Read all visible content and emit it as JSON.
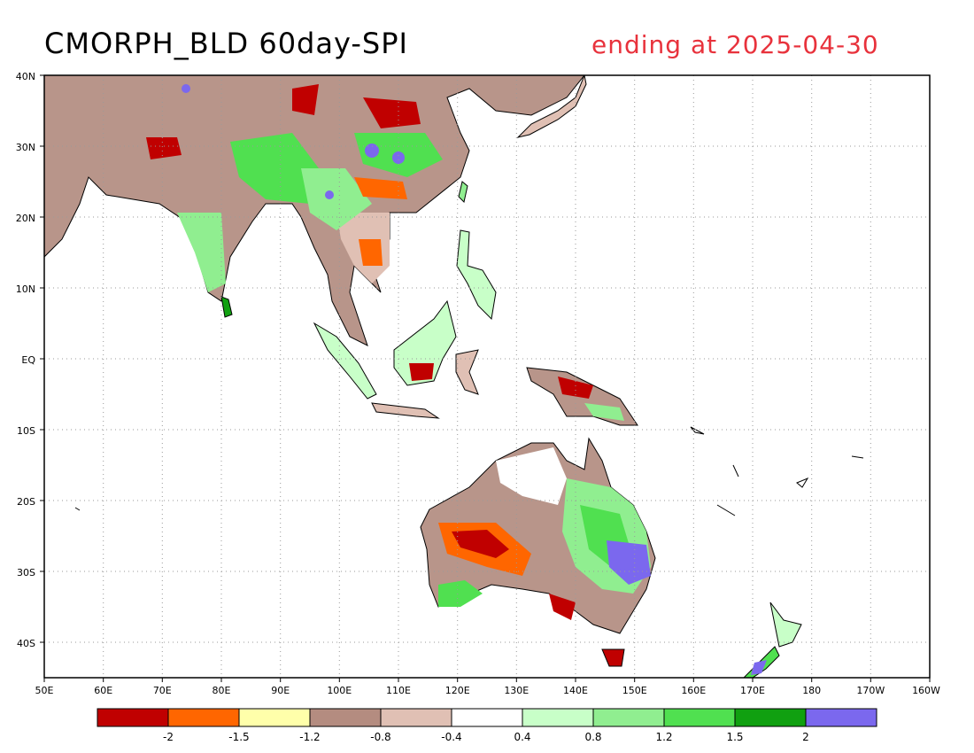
{
  "title": {
    "main": "CMORPH_BLD 60day-SPI",
    "ending": "ending at 2025-04-30",
    "ending_color": "#e8323c"
  },
  "map": {
    "lon_labels": [
      "50E",
      "60E",
      "70E",
      "80E",
      "90E",
      "100E",
      "110E",
      "120E",
      "130E",
      "140E",
      "150E",
      "160E",
      "170E",
      "180",
      "170W",
      "160W"
    ],
    "lat_labels": [
      "40N",
      "30N",
      "20N",
      "10N",
      "EQ",
      "10S",
      "20S",
      "30S",
      "40S"
    ],
    "ocean_color": "#ffffff",
    "gridline_style": "dotted"
  },
  "colorbar": {
    "colors": [
      "#c00000",
      "#ff6600",
      "#ffffaa",
      "#b48c80",
      "#e0c0b4",
      "#ffffff",
      "#c8ffc8",
      "#90ee90",
      "#50e050",
      "#10a010",
      "#7b68ee"
    ],
    "tick_labels": [
      "-2",
      "-1.5",
      "-1.2",
      "-0.8",
      "-0.4",
      "0.4",
      "0.8",
      "1.2",
      "1.5",
      "2"
    ]
  }
}
